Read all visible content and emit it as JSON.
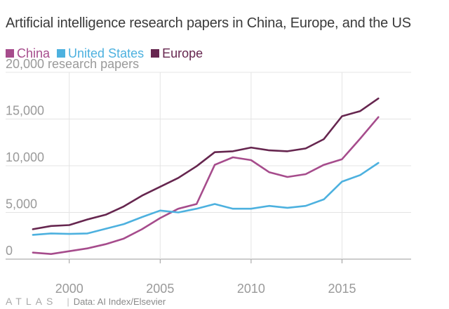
{
  "chart_data": {
    "type": "line",
    "title": "Artificial intelligence research papers in China, Europe, and the US",
    "ylabel": "20,000 research papers",
    "xlabel": "",
    "ylim": [
      0,
      20000
    ],
    "xlim": [
      1996.5,
      2018.8
    ],
    "yticks": [
      0,
      5000,
      10000,
      15000
    ],
    "ytick_labels": [
      "0",
      "5,000",
      "10,000",
      "15,000"
    ],
    "xticks": [
      2000,
      2005,
      2010,
      2015
    ],
    "xtick_labels": [
      "2000",
      "2005",
      "2010",
      "2015"
    ],
    "grid": true,
    "legend_position": "top-left",
    "x": [
      1998,
      1999,
      2000,
      2001,
      2002,
      2003,
      2004,
      2005,
      2006,
      2007,
      2008,
      2009,
      2010,
      2011,
      2012,
      2013,
      2014,
      2015,
      2016,
      2017
    ],
    "series": [
      {
        "name": "China",
        "color": "#a64c8c",
        "values": [
          700,
          550,
          850,
          1150,
          1600,
          2200,
          3200,
          4400,
          5400,
          5900,
          10100,
          10900,
          10600,
          9300,
          8800,
          9100,
          10100,
          10700,
          12900,
          15200
        ]
      },
      {
        "name": "United States",
        "color": "#4db1df",
        "values": [
          2600,
          2750,
          2700,
          2750,
          3250,
          3750,
          4500,
          5200,
          5000,
          5400,
          5900,
          5400,
          5400,
          5700,
          5500,
          5700,
          6400,
          8300,
          9000,
          10300
        ]
      },
      {
        "name": "Europe",
        "color": "#66264f",
        "values": [
          3200,
          3550,
          3650,
          4250,
          4750,
          5650,
          6800,
          7750,
          8700,
          9950,
          11450,
          11550,
          11950,
          11650,
          11550,
          11850,
          12850,
          15300,
          15850,
          17200
        ]
      }
    ]
  },
  "footer": {
    "logo": "ATLAS",
    "separator": "|",
    "source": "Data: AI Index/Elsevier"
  }
}
